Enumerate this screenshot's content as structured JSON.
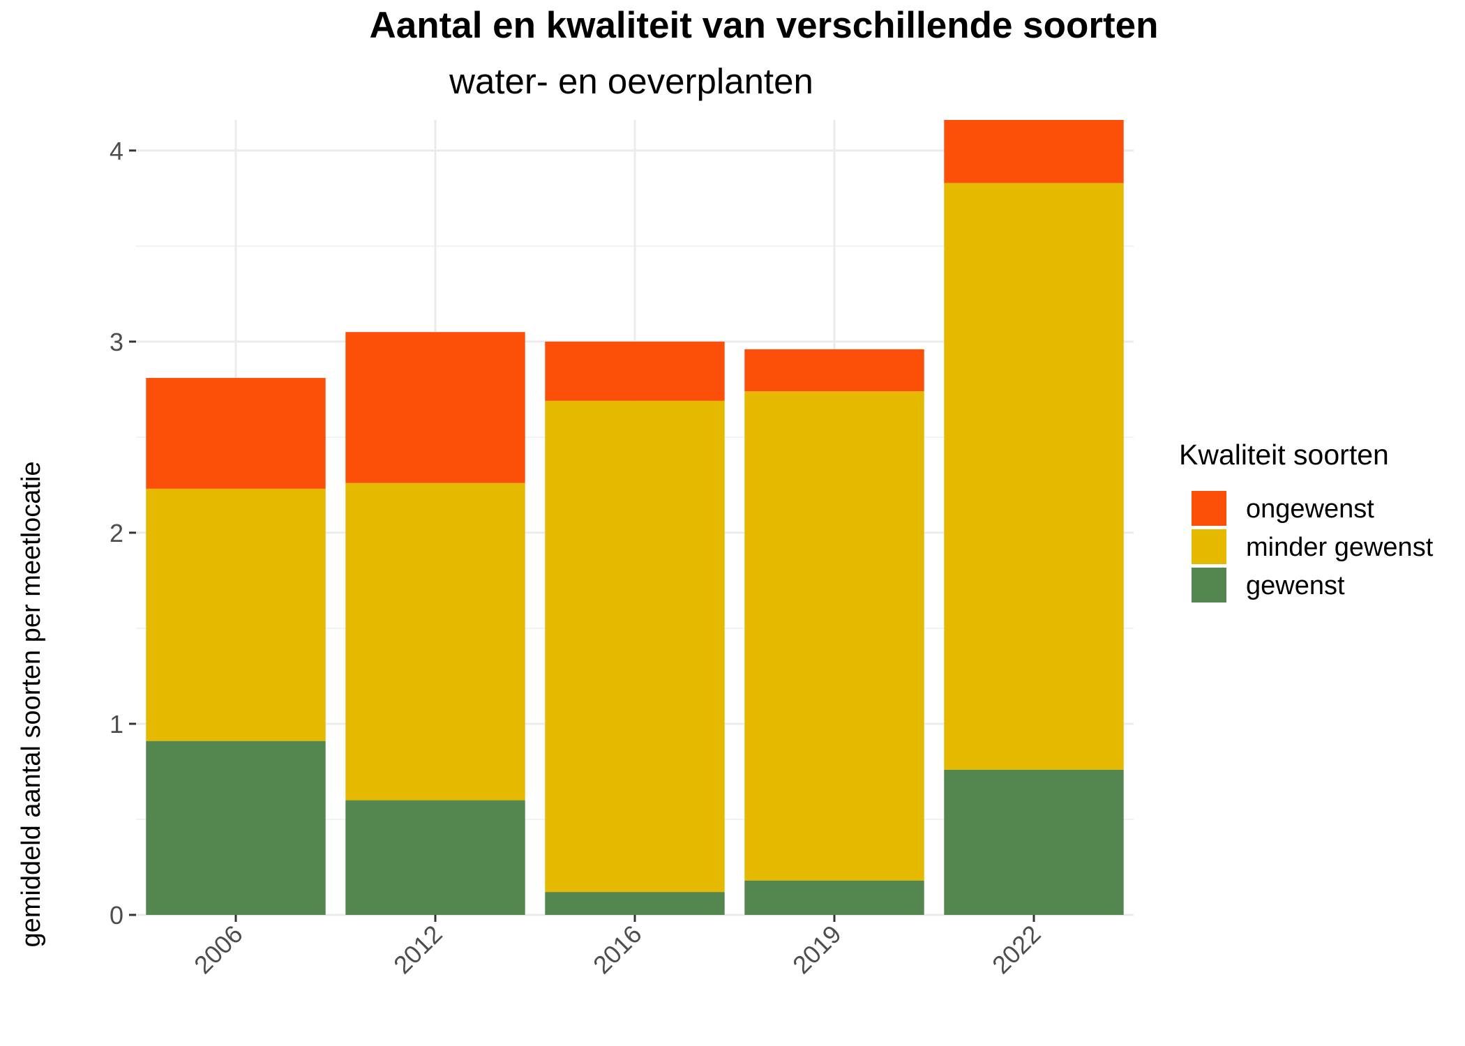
{
  "chart_data": {
    "type": "bar",
    "stacked": true,
    "title": "Aantal en kwaliteit van verschillende soorten",
    "subtitle": "water- en oeverplanten",
    "xlabel": "",
    "ylabel": "gemiddeld aantal soorten per meetlocatie",
    "categories": [
      "2006",
      "2012",
      "2016",
      "2019",
      "2022"
    ],
    "series": [
      {
        "name": "gewenst",
        "color": "#53874F",
        "values": [
          0.91,
          0.6,
          0.12,
          0.18,
          0.76
        ]
      },
      {
        "name": "minder gewenst",
        "color": "#E5B900",
        "values": [
          1.32,
          1.66,
          2.57,
          2.56,
          3.07
        ]
      },
      {
        "name": "ongewenst",
        "color": "#FC4F0A",
        "values": [
          0.58,
          0.79,
          0.31,
          0.22,
          0.33
        ]
      }
    ],
    "ylim": [
      0,
      4.16
    ],
    "yticks": [
      0,
      1,
      2,
      3,
      4
    ],
    "grid": true,
    "legend": {
      "title": "Kwaliteit soorten",
      "placement": "right",
      "order": [
        "ongewenst",
        "minder gewenst",
        "gewenst"
      ]
    }
  }
}
